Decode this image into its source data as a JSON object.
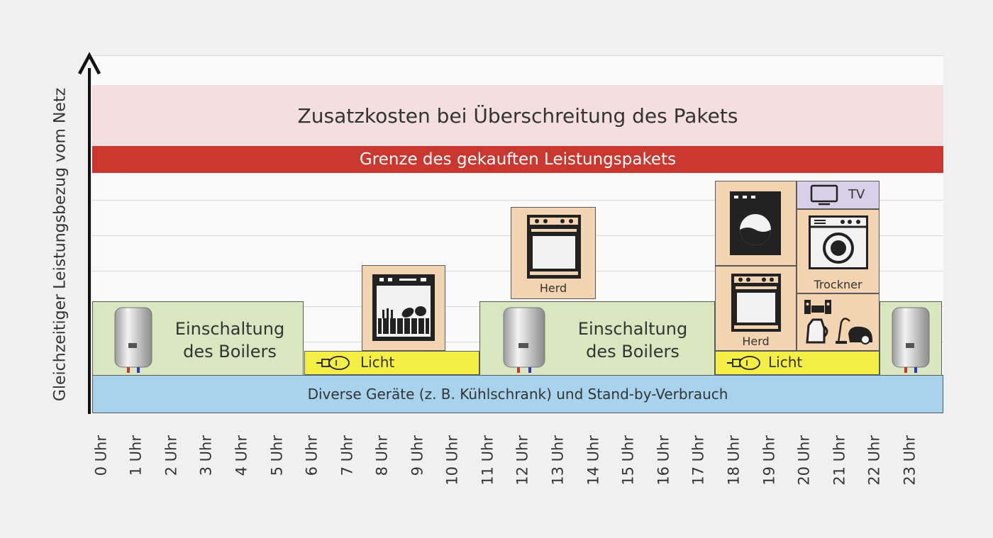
{
  "y_axis_title": "Gleichzeitiger Leistungsbezug vom Netz",
  "x_ticks": [
    "0 Uhr",
    "1 Uhr",
    "2 Uhr",
    "3 Uhr",
    "4 Uhr",
    "5 Uhr",
    "6 Uhr",
    "7 Uhr",
    "8 Uhr",
    "9 Uhr",
    "10 Uhr",
    "11 Uhr",
    "12 Uhr",
    "13 Uhr",
    "14 Uhr",
    "15 Uhr",
    "16 Uhr",
    "17 Uhr",
    "18 Uhr",
    "19 Uhr",
    "20 Uhr",
    "21 Uhr",
    "22 Uhr",
    "23 Uhr"
  ],
  "bands": {
    "overage": "Zusatzkosten bei Überschreitung des Pakets",
    "limit": "Grenze des gekauften Leistungspakets",
    "baseline": "Diverse Geräte (z. B. Kühlschrank) und Stand-by-Verbrauch"
  },
  "blocks": {
    "boiler_morning": "Einschaltung des Boilers",
    "boiler_midday": "Einschaltung des Boilers",
    "light_morning": "Licht",
    "light_evening": "Licht",
    "herd_midday": "Herd",
    "herd_evening": "Herd",
    "trockner": "Trockner",
    "tv": "TV"
  },
  "icons": {
    "boiler": "water-heater-icon",
    "bulb": "light-bulb-icon",
    "dishwasher": "dishwasher-icon",
    "stove": "stove-icon",
    "washing_machine": "washing-machine-icon",
    "dryer": "dryer-icon",
    "television": "tv-icon",
    "small_appliances": "kettle-vacuum-stereo-icon"
  },
  "colors": {
    "overage": "#f4dede",
    "limit": "#c9372f",
    "baseline": "#a9d3ec",
    "boiler": "#d8e7bf",
    "light": "#f3ef47",
    "appliance": "#f2d4b2",
    "tv": "#d8d0e8"
  }
}
